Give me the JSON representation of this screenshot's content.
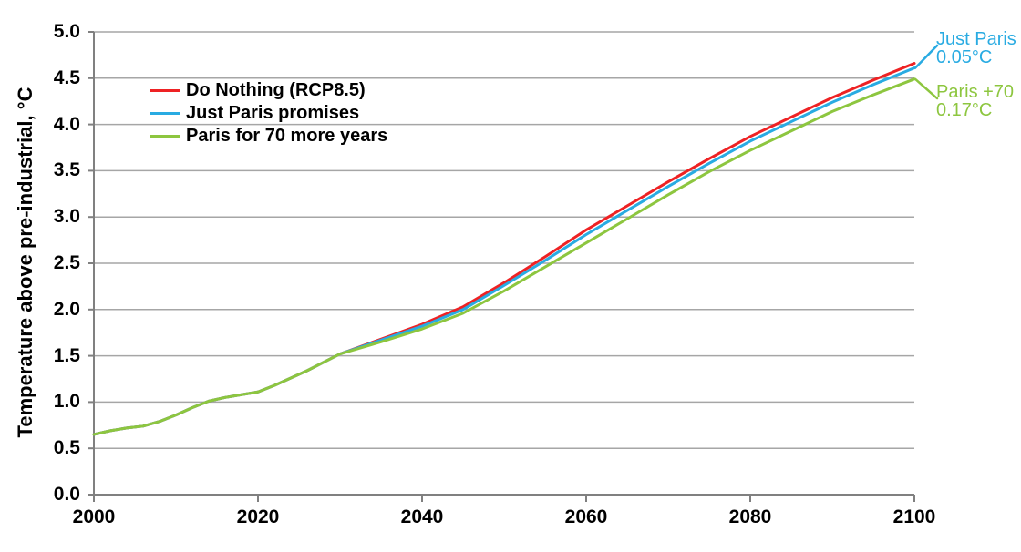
{
  "chart_data": {
    "type": "line",
    "title": "",
    "xlabel": "",
    "ylabel": "Temperature above pre-industrial, °C",
    "xlim": [
      2000,
      2100
    ],
    "ylim": [
      0.0,
      5.0
    ],
    "grid": "horizontal",
    "legend_position": "upper-left-inside",
    "x_ticks": [
      2000,
      2020,
      2040,
      2060,
      2080,
      2100
    ],
    "y_ticks": [
      "0.0",
      "0.5",
      "1.0",
      "1.5",
      "2.0",
      "2.5",
      "3.0",
      "3.5",
      "4.0",
      "4.5",
      "5.0"
    ],
    "x": [
      2000,
      2002,
      2004,
      2006,
      2008,
      2010,
      2012,
      2014,
      2016,
      2018,
      2020,
      2022,
      2024,
      2026,
      2028,
      2030,
      2035,
      2040,
      2045,
      2050,
      2055,
      2060,
      2065,
      2070,
      2075,
      2080,
      2085,
      2090,
      2095,
      2100
    ],
    "series": [
      {
        "name": "Do Nothing (RCP8.5)",
        "color": "#EE2224",
        "values": [
          0.65,
          0.69,
          0.72,
          0.74,
          0.79,
          0.86,
          0.94,
          1.01,
          1.05,
          1.08,
          1.11,
          1.18,
          1.26,
          1.34,
          1.43,
          1.52,
          1.68,
          1.84,
          2.03,
          2.29,
          2.57,
          2.86,
          3.12,
          3.38,
          3.63,
          3.87,
          4.08,
          4.29,
          4.48,
          4.66
        ]
      },
      {
        "name": "Just Paris promises",
        "color": "#29ABE2",
        "values": [
          0.65,
          0.69,
          0.72,
          0.74,
          0.79,
          0.86,
          0.94,
          1.01,
          1.05,
          1.08,
          1.11,
          1.18,
          1.26,
          1.34,
          1.43,
          1.52,
          1.67,
          1.82,
          2.0,
          2.26,
          2.53,
          2.81,
          3.07,
          3.33,
          3.58,
          3.82,
          4.03,
          4.24,
          4.43,
          4.61
        ]
      },
      {
        "name": "Paris for 70 more years",
        "color": "#8DC63F",
        "values": [
          0.65,
          0.69,
          0.72,
          0.74,
          0.79,
          0.86,
          0.94,
          1.01,
          1.05,
          1.08,
          1.11,
          1.18,
          1.26,
          1.34,
          1.43,
          1.52,
          1.65,
          1.79,
          1.96,
          2.2,
          2.46,
          2.72,
          2.98,
          3.24,
          3.49,
          3.72,
          3.93,
          4.14,
          4.32,
          4.49
        ]
      }
    ],
    "annotations": [
      {
        "lines": [
          "Just Paris",
          "0.05°C"
        ],
        "color": "#29ABE2",
        "attached_series": "Just Paris promises"
      },
      {
        "lines": [
          "Paris +70",
          "0.17°C"
        ],
        "color": "#8DC63F",
        "attached_series": "Paris for 70 more years"
      }
    ],
    "colors": {
      "gridline": "#A6A6A6",
      "axis": "#808080",
      "text": "#000000"
    }
  }
}
